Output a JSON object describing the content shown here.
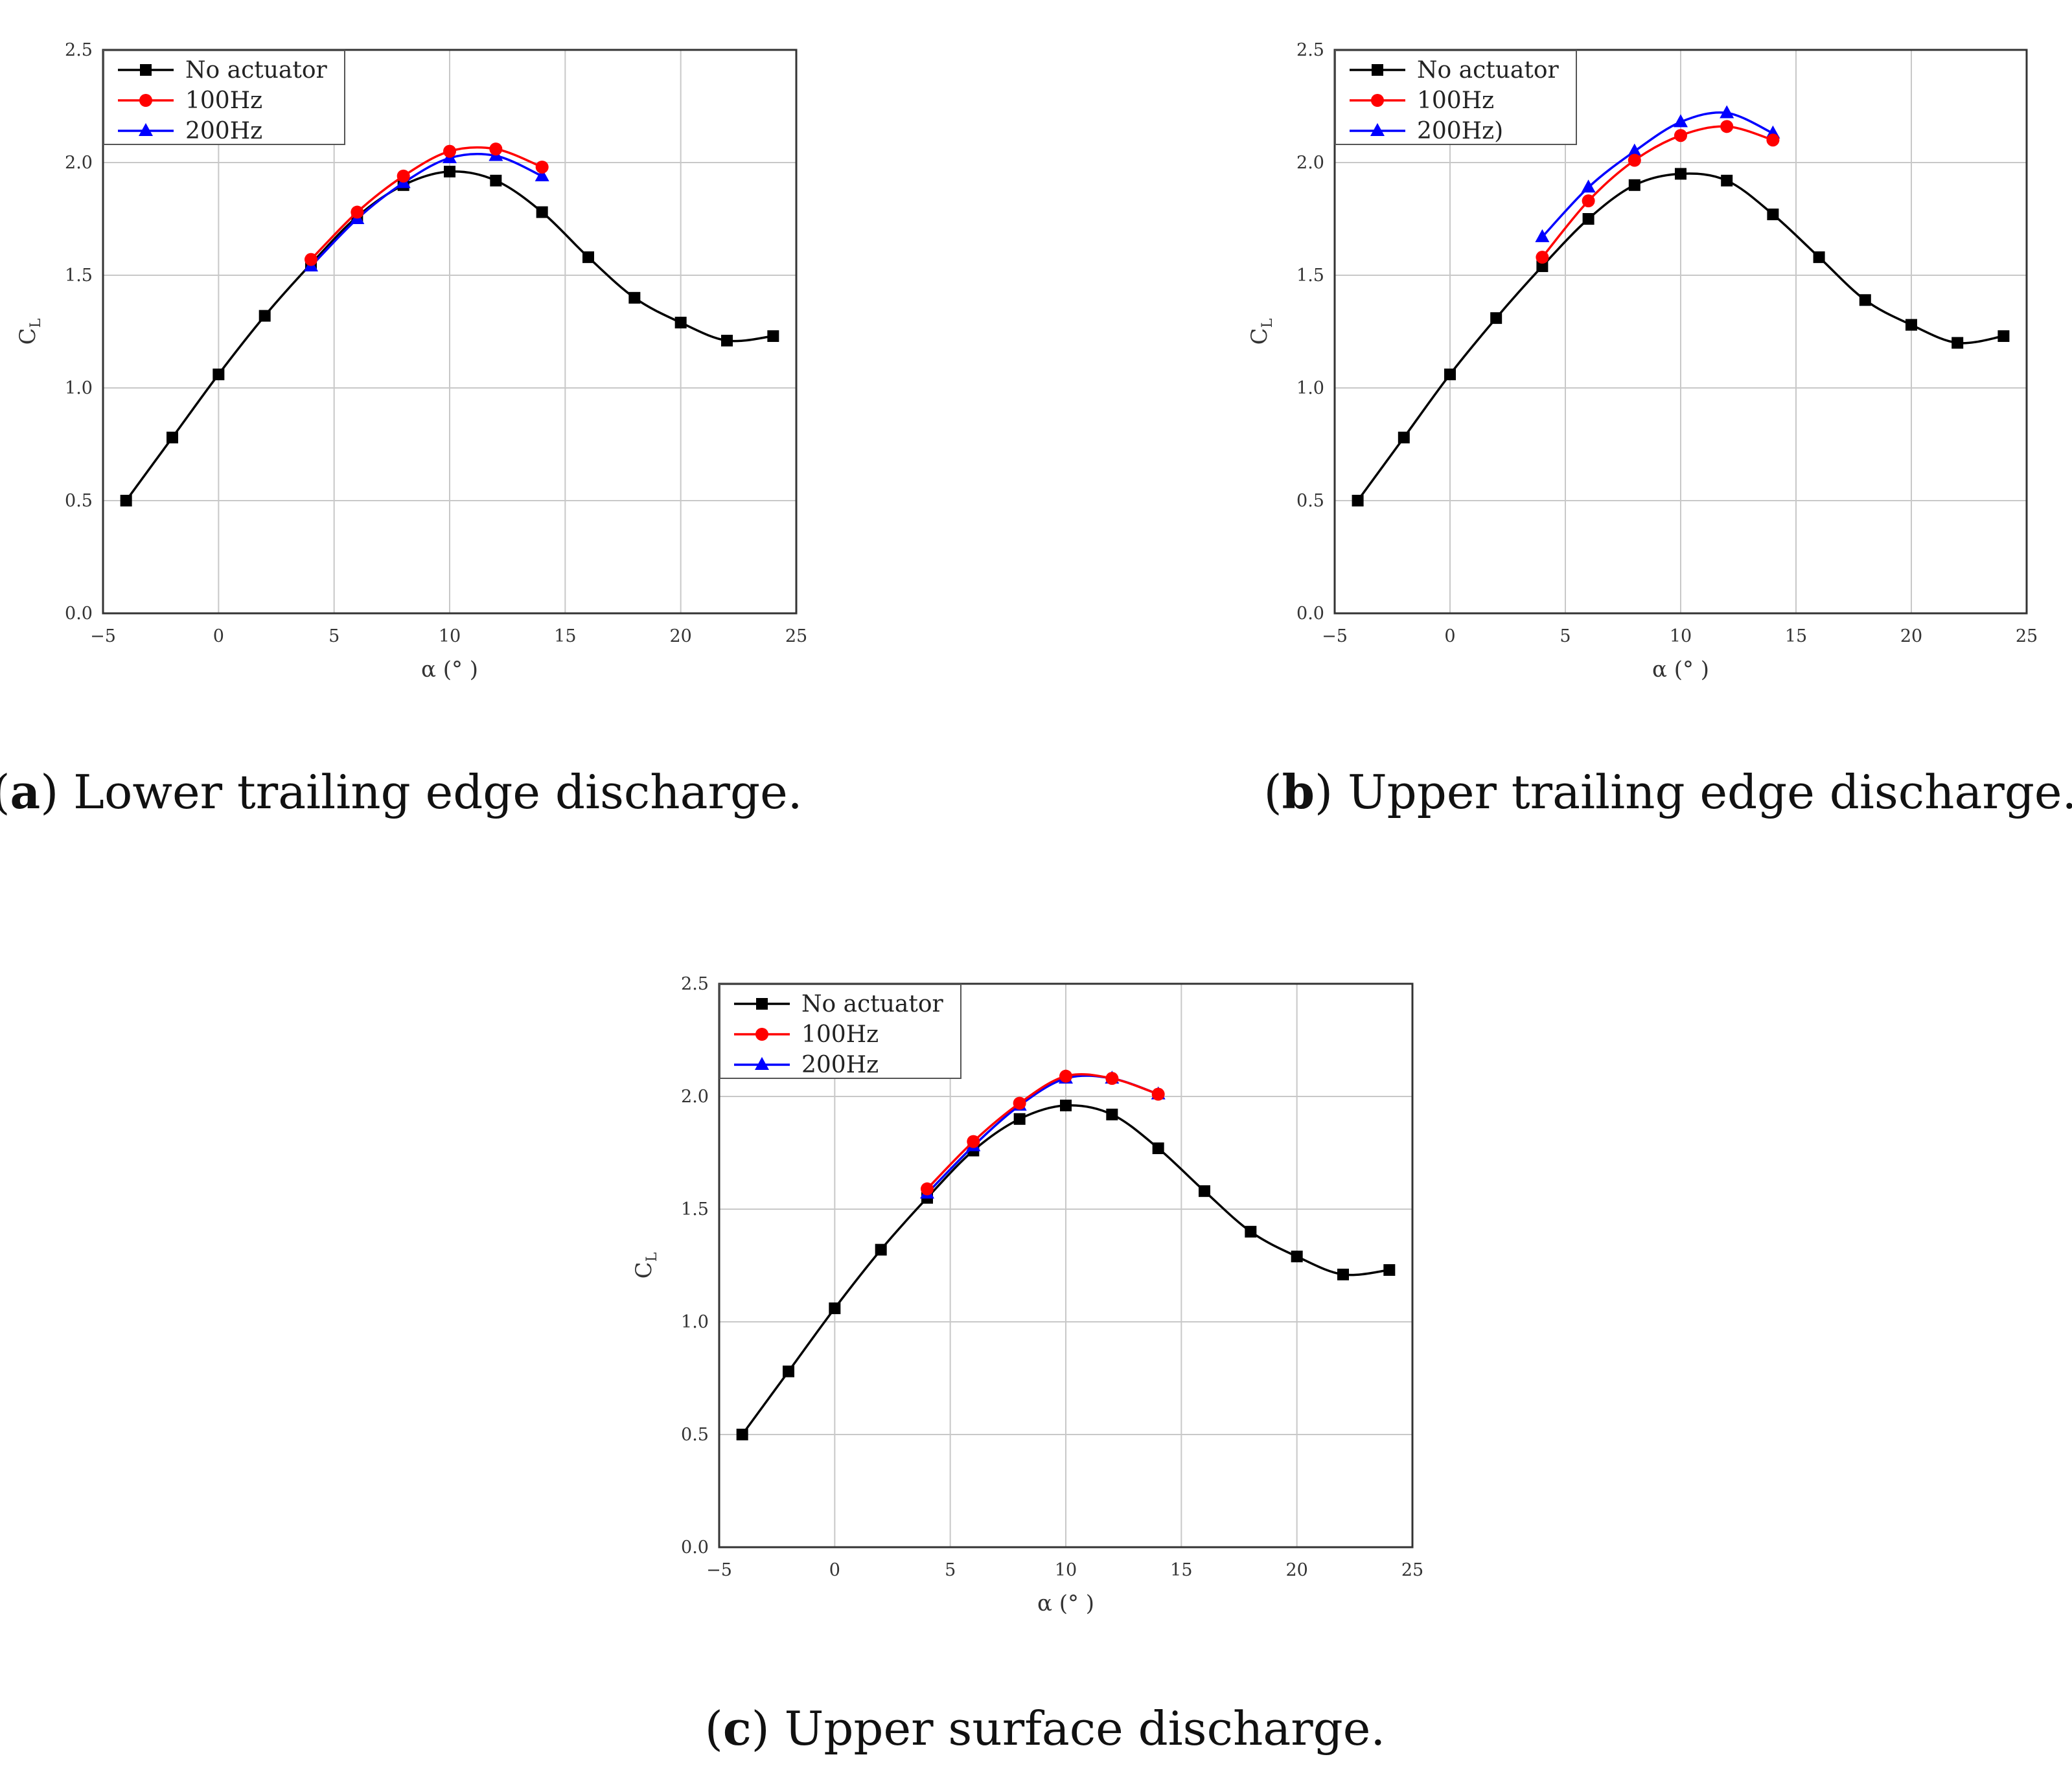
{
  "colors": {
    "no_actuator": "#000000",
    "hz100": "#ff0000",
    "hz200": "#0000ff",
    "grid": "#c8c8c8",
    "frame": "#333333"
  },
  "chart_data": [
    {
      "type": "line",
      "panel": "a",
      "caption": {
        "letter": "a",
        "text": "Lower trailing edge discharge."
      },
      "xlabel": "α (° )",
      "ylabel": "C",
      "ylabel_sub": "L",
      "xlim": [
        -5,
        25
      ],
      "ylim": [
        0.0,
        2.5
      ],
      "xticks": [
        -5,
        0,
        5,
        10,
        15,
        20,
        25
      ],
      "xtick_labels": [
        "−5",
        "0",
        "5",
        "10",
        "15",
        "20",
        "25"
      ],
      "yticks": [
        0.0,
        0.5,
        1.0,
        1.5,
        2.0,
        2.5
      ],
      "ytick_labels": [
        "0.0",
        "0.5",
        "1.0",
        "1.5",
        "2.0",
        "2.5"
      ],
      "grid": true,
      "legend_position": "top-left",
      "series": [
        {
          "name": "No actuator",
          "color": "#000000",
          "marker": "square",
          "x": [
            -4,
            -2,
            0,
            2,
            4,
            6,
            8,
            10,
            12,
            14,
            16,
            18,
            20,
            22,
            24
          ],
          "y": [
            0.5,
            0.78,
            1.06,
            1.32,
            1.55,
            1.76,
            1.9,
            1.96,
            1.92,
            1.78,
            1.58,
            1.4,
            1.29,
            1.21,
            1.23
          ]
        },
        {
          "name": "100Hz",
          "color": "#ff0000",
          "marker": "circle",
          "x": [
            4,
            6,
            8,
            10,
            12,
            14
          ],
          "y": [
            1.57,
            1.78,
            1.94,
            2.05,
            2.06,
            1.98
          ]
        },
        {
          "name": "200Hz",
          "color": "#0000ff",
          "marker": "triangle",
          "x": [
            4,
            6,
            8,
            10,
            12,
            14
          ],
          "y": [
            1.54,
            1.75,
            1.91,
            2.02,
            2.03,
            1.94
          ]
        }
      ]
    },
    {
      "type": "line",
      "panel": "b",
      "caption": {
        "letter": "b",
        "text": "Upper trailing edge discharge."
      },
      "xlabel": "α (° )",
      "ylabel": "C",
      "ylabel_sub": "L",
      "xlim": [
        -5,
        25
      ],
      "ylim": [
        0.0,
        2.5
      ],
      "xticks": [
        -5,
        0,
        5,
        10,
        15,
        20,
        25
      ],
      "xtick_labels": [
        "−5",
        "0",
        "5",
        "10",
        "15",
        "20",
        "25"
      ],
      "yticks": [
        0.0,
        0.5,
        1.0,
        1.5,
        2.0,
        2.5
      ],
      "ytick_labels": [
        "0.0",
        "0.5",
        "1.0",
        "1.5",
        "2.0",
        "2.5"
      ],
      "grid": true,
      "legend_position": "top-left",
      "series": [
        {
          "name": "No actuator",
          "color": "#000000",
          "marker": "square",
          "x": [
            -4,
            -2,
            0,
            2,
            4,
            6,
            8,
            10,
            12,
            14,
            16,
            18,
            20,
            22,
            24
          ],
          "y": [
            0.5,
            0.78,
            1.06,
            1.31,
            1.54,
            1.75,
            1.9,
            1.95,
            1.92,
            1.77,
            1.58,
            1.39,
            1.28,
            1.2,
            1.23
          ]
        },
        {
          "name": "100Hz",
          "color": "#ff0000",
          "marker": "circle",
          "x": [
            4,
            6,
            8,
            10,
            12,
            14
          ],
          "y": [
            1.58,
            1.83,
            2.01,
            2.12,
            2.16,
            2.1
          ]
        },
        {
          "name": "200Hz)",
          "color": "#0000ff",
          "marker": "triangle",
          "x": [
            4,
            6,
            8,
            10,
            12,
            14
          ],
          "y": [
            1.67,
            1.89,
            2.05,
            2.18,
            2.22,
            2.13
          ]
        }
      ]
    },
    {
      "type": "line",
      "panel": "c",
      "caption": {
        "letter": "c",
        "text": "Upper surface discharge."
      },
      "xlabel": "α (° )",
      "ylabel": "C",
      "ylabel_sub": "L",
      "xlim": [
        -5,
        25
      ],
      "ylim": [
        0.0,
        2.5
      ],
      "xticks": [
        -5,
        0,
        5,
        10,
        15,
        20,
        25
      ],
      "xtick_labels": [
        "−5",
        "0",
        "5",
        "10",
        "15",
        "20",
        "25"
      ],
      "yticks": [
        0.0,
        0.5,
        1.0,
        1.5,
        2.0,
        2.5
      ],
      "ytick_labels": [
        "0.0",
        "0.5",
        "1.0",
        "1.5",
        "2.0",
        "2.5"
      ],
      "grid": true,
      "legend_position": "top-left",
      "series": [
        {
          "name": "No actuator",
          "color": "#000000",
          "marker": "square",
          "x": [
            -4,
            -2,
            0,
            2,
            4,
            6,
            8,
            10,
            12,
            14,
            16,
            18,
            20,
            22,
            24
          ],
          "y": [
            0.5,
            0.78,
            1.06,
            1.32,
            1.55,
            1.76,
            1.9,
            1.96,
            1.92,
            1.77,
            1.58,
            1.4,
            1.29,
            1.21,
            1.23
          ]
        },
        {
          "name": "100Hz",
          "color": "#ff0000",
          "marker": "circle",
          "x": [
            4,
            6,
            8,
            10,
            12,
            14
          ],
          "y": [
            1.59,
            1.8,
            1.97,
            2.09,
            2.08,
            2.01
          ]
        },
        {
          "name": "200Hz",
          "color": "#0000ff",
          "marker": "triangle",
          "x": [
            4,
            6,
            8,
            10,
            12,
            14
          ],
          "y": [
            1.57,
            1.78,
            1.96,
            2.08,
            2.08,
            2.01
          ]
        }
      ]
    }
  ]
}
